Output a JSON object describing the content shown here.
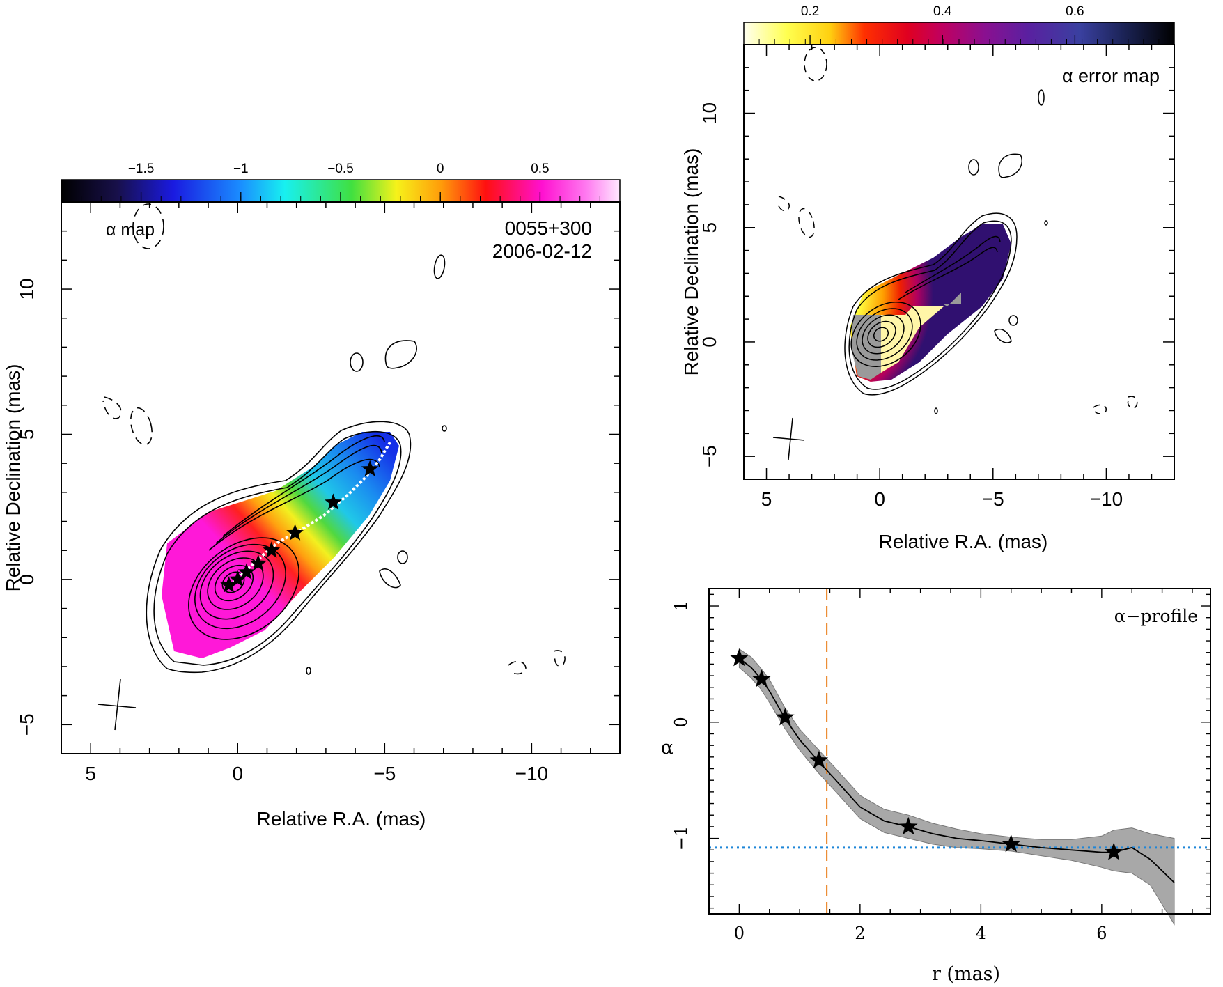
{
  "chart_data": [
    {
      "type": "heatmap",
      "panel": "alpha-map",
      "title_left": "α map",
      "title_right_line1": "0055+300",
      "title_right_line2": "2006-02-12",
      "xlabel": "Relative R.A. (mas)",
      "ylabel": "Relative Declination (mas)",
      "xlim": [
        6,
        -13
      ],
      "ylim": [
        -6,
        13
      ],
      "xticks": [
        "5",
        "0",
        "−5",
        "−10"
      ],
      "yticks": [
        "−5",
        "0",
        "5",
        "10"
      ],
      "colorbar": {
        "range": [
          -1.9,
          0.9
        ],
        "ticks": [
          "−1.5",
          "−1",
          "−0.5",
          "0",
          "0.5"
        ],
        "tick_values": [
          -1.5,
          -1,
          -0.5,
          0,
          0.5
        ],
        "colormap": "rainbow (black-blue-cyan-green-yellow-orange-red-magenta-pink)"
      },
      "ridge_stars": [
        {
          "x": 0.3,
          "y": -0.2
        },
        {
          "x": 0.0,
          "y": 0.0
        },
        {
          "x": -0.3,
          "y": 0.25
        },
        {
          "x": -0.7,
          "y": 0.55
        },
        {
          "x": -1.15,
          "y": 1.0
        },
        {
          "x": -1.95,
          "y": 1.6
        },
        {
          "x": -3.25,
          "y": 2.65
        },
        {
          "x": -4.5,
          "y": 3.8
        }
      ]
    },
    {
      "type": "heatmap",
      "panel": "alpha-error-map",
      "title_right": "α error map",
      "xlabel": "Relative R.A. (mas)",
      "ylabel": "Relative Declination (mas)",
      "xlim": [
        6,
        -13
      ],
      "ylim": [
        -6,
        13
      ],
      "xticks": [
        "5",
        "0",
        "−5",
        "−10"
      ],
      "yticks": [
        "−5",
        "0",
        "5",
        "10"
      ],
      "colorbar": {
        "range": [
          0.1,
          0.75
        ],
        "ticks": [
          "0.2",
          "0.4",
          "0.6"
        ],
        "tick_values": [
          0.2,
          0.4,
          0.6
        ],
        "colormap": "heat (yellow-orange-red-purple-blue-black)"
      }
    },
    {
      "type": "line",
      "panel": "alpha-profile",
      "title_right": "α−profile",
      "xlabel": "r (mas)",
      "ylabel": "α",
      "xlim": [
        -0.5,
        7.8
      ],
      "ylim": [
        -1.65,
        1.15
      ],
      "xticks": [
        "0",
        "2",
        "4",
        "6"
      ],
      "yticks": [
        "1",
        "0",
        "−1"
      ],
      "series": [
        {
          "x": [
            0.0,
            0.2,
            0.35,
            0.5,
            0.75,
            1.0,
            1.3,
            1.6,
            2.0,
            2.4,
            2.8,
            3.2,
            3.6,
            4.0,
            4.5,
            5.0,
            5.5,
            6.0,
            6.2,
            6.5,
            6.8,
            7.2
          ],
          "y": [
            0.55,
            0.47,
            0.38,
            0.27,
            0.04,
            -0.15,
            -0.33,
            -0.5,
            -0.73,
            -0.85,
            -0.9,
            -0.96,
            -1.0,
            -1.02,
            -1.05,
            -1.08,
            -1.1,
            -1.12,
            -1.12,
            -1.08,
            -1.18,
            -1.38
          ],
          "err_upper": [
            0.63,
            0.56,
            0.47,
            0.37,
            0.13,
            -0.06,
            -0.23,
            -0.4,
            -0.63,
            -0.75,
            -0.8,
            -0.87,
            -0.92,
            -0.96,
            -0.99,
            -1.01,
            -1.01,
            -0.98,
            -0.93,
            -0.91,
            -0.96,
            -1.0
          ],
          "err_lower": [
            0.47,
            0.38,
            0.29,
            0.17,
            -0.05,
            -0.24,
            -0.43,
            -0.6,
            -0.83,
            -0.95,
            -1.0,
            -1.05,
            -1.08,
            -1.09,
            -1.11,
            -1.15,
            -1.19,
            -1.25,
            -1.28,
            -1.3,
            -1.4,
            -1.74
          ]
        }
      ],
      "stars": [
        {
          "x": 0.0,
          "y": 0.55
        },
        {
          "x": 0.37,
          "y": 0.37
        },
        {
          "x": 0.76,
          "y": 0.04
        },
        {
          "x": 1.32,
          "y": -0.33
        },
        {
          "x": 2.8,
          "y": -0.9
        },
        {
          "x": 4.5,
          "y": -1.05
        },
        {
          "x": 6.2,
          "y": -1.12
        }
      ],
      "vertical_line": {
        "x": 1.45,
        "color": "#e87a12",
        "style": "dashed"
      },
      "horizontal_line": {
        "y": -1.08,
        "color": "#1f86d8",
        "style": "dotted"
      },
      "band_color": "#a8a8a8"
    }
  ]
}
